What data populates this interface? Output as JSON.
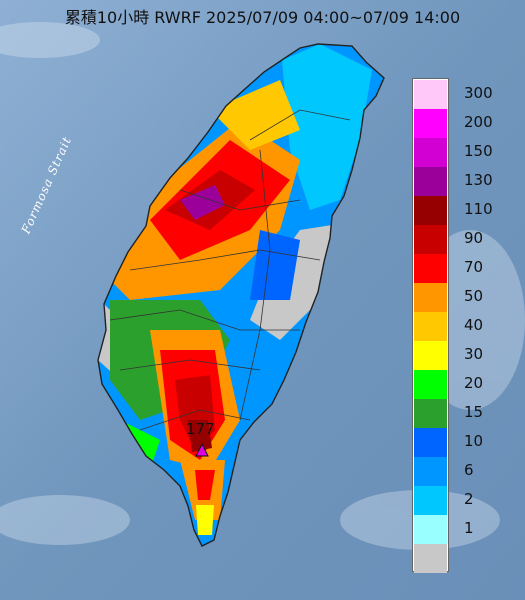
{
  "title": "累積10小時 RWRF 2025/07/09 04:00~07/09 14:00",
  "strait_label": "Formosa Strait",
  "max_marker": {
    "label": "177",
    "icon": "triangle-marker-icon"
  },
  "legend": [
    {
      "label": "300",
      "color": "#ffc8f8"
    },
    {
      "label": "200",
      "color": "#ff00ff"
    },
    {
      "label": "150",
      "color": "#d200d2"
    },
    {
      "label": "130",
      "color": "#9b009b"
    },
    {
      "label": "110",
      "color": "#960000"
    },
    {
      "label": "90",
      "color": "#c80000"
    },
    {
      "label": "70",
      "color": "#ff0000"
    },
    {
      "label": "50",
      "color": "#ff9600"
    },
    {
      "label": "40",
      "color": "#ffc800"
    },
    {
      "label": "30",
      "color": "#ffff00"
    },
    {
      "label": "20",
      "color": "#00ff00"
    },
    {
      "label": "15",
      "color": "#2ca02c"
    },
    {
      "label": "10",
      "color": "#0064ff"
    },
    {
      "label": "6",
      "color": "#0096ff"
    },
    {
      "label": "2",
      "color": "#00c8ff"
    },
    {
      "label": "1",
      "color": "#99ffff"
    },
    {
      "label": "",
      "color": "#c8c8c8"
    }
  ]
}
